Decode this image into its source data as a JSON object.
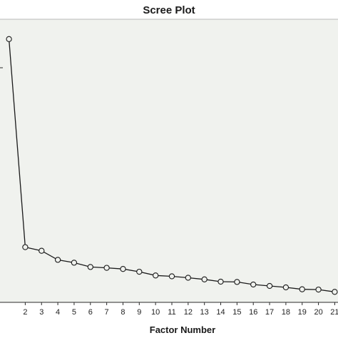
{
  "chart_data": {
    "type": "line",
    "title": "Scree Plot",
    "xlabel": "Factor Number",
    "ylabel": "",
    "x": [
      1,
      2,
      3,
      4,
      5,
      6,
      7,
      8,
      9,
      10,
      11,
      12,
      13,
      14,
      15,
      16,
      17,
      18,
      19,
      20,
      21
    ],
    "x_tick_labels": [
      "2",
      "3",
      "4",
      "5",
      "6",
      "7",
      "8",
      "9",
      "10",
      "11",
      "12",
      "13",
      "14",
      "15",
      "16",
      "17",
      "18",
      "19",
      "20",
      "21"
    ],
    "series": [
      {
        "name": "",
        "values": [
          9.3,
          1.95,
          1.82,
          1.5,
          1.4,
          1.25,
          1.22,
          1.18,
          1.08,
          0.95,
          0.92,
          0.87,
          0.81,
          0.73,
          0.72,
          0.63,
          0.58,
          0.53,
          0.46,
          0.45,
          0.37
        ]
      }
    ],
    "xlim": [
      0.45,
      21.2
    ],
    "ylim": [
      0,
      10
    ],
    "grid": false,
    "legend": "none",
    "colors": {
      "background": "#ffffff",
      "plot_background": "#f0f2ee",
      "line": "#1a1a1a",
      "marker_fill": "#f0f2ee"
    }
  }
}
